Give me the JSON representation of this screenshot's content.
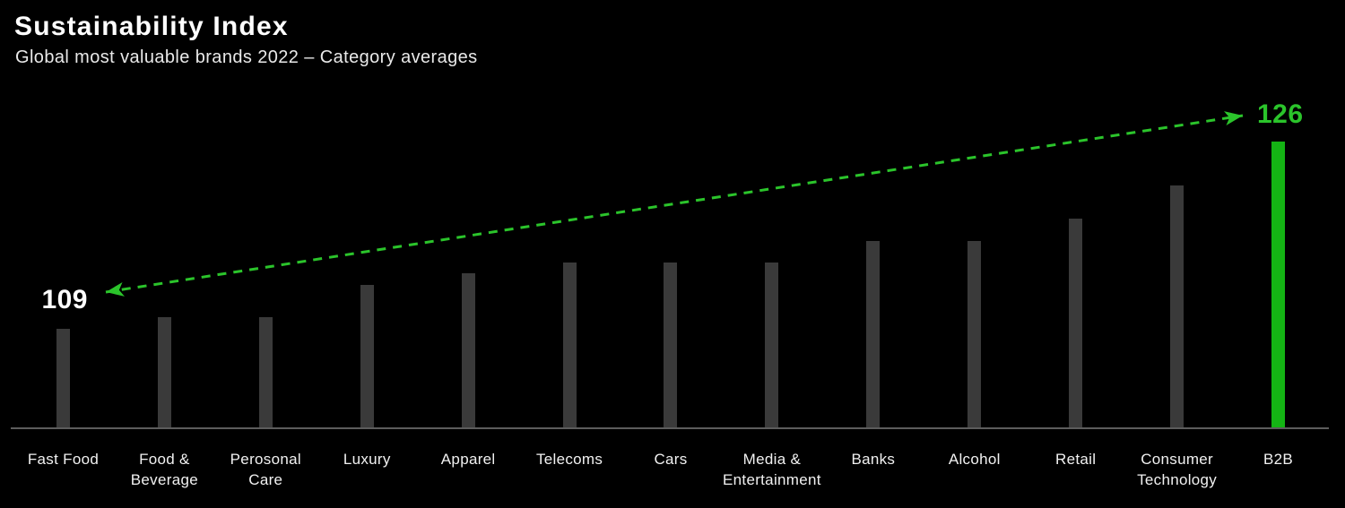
{
  "header": {
    "title": "Sustainability Index",
    "subtitle": "Global most valuable brands 2022 – Category averages"
  },
  "annotations": {
    "start_value": "109",
    "end_value": "126"
  },
  "colors": {
    "background": "#000000",
    "title": "#ffffff",
    "subtitle": "#e9e9e9",
    "label": "#f1f1f1",
    "bar": "#3a3a3a",
    "bar_highlight": "#14b414",
    "accent": "#2bc42b",
    "axis": "#5c5c5c"
  },
  "chart_data": {
    "type": "bar",
    "title": "Sustainability Index",
    "subtitle": "Global most valuable brands 2022 – Category averages",
    "categories": [
      "Fast Food",
      "Food & Beverage",
      "Perosonal Care",
      "Luxury",
      "Apparel",
      "Telecoms",
      "Cars",
      "Media & Entertainment",
      "Banks",
      "Alcohol",
      "Retail",
      "Consumer Technology",
      "B2B"
    ],
    "categories_lines": [
      [
        "Fast Food"
      ],
      [
        "Food &",
        "Beverage"
      ],
      [
        "Perosonal",
        "Care"
      ],
      [
        "Luxury"
      ],
      [
        "Apparel"
      ],
      [
        "Telecoms"
      ],
      [
        "Cars"
      ],
      [
        "Media &",
        "Entertainment"
      ],
      [
        "Banks"
      ],
      [
        "Alcohol"
      ],
      [
        "Retail"
      ],
      [
        "Consumer",
        "Technology"
      ],
      [
        "B2B"
      ]
    ],
    "values": [
      109,
      110,
      110,
      113,
      114,
      115,
      115,
      115,
      117,
      117,
      119,
      122,
      126
    ],
    "highlight_category": "B2B",
    "baseline_value": 100,
    "ylim": [
      100,
      131
    ],
    "xlabel": "",
    "ylabel": "",
    "grid": false,
    "legend": false,
    "annotation_arrow": {
      "style": "dashed-double-headed",
      "from_label": "109",
      "to_label": "126",
      "from_value": 109,
      "to_value": 126
    }
  }
}
